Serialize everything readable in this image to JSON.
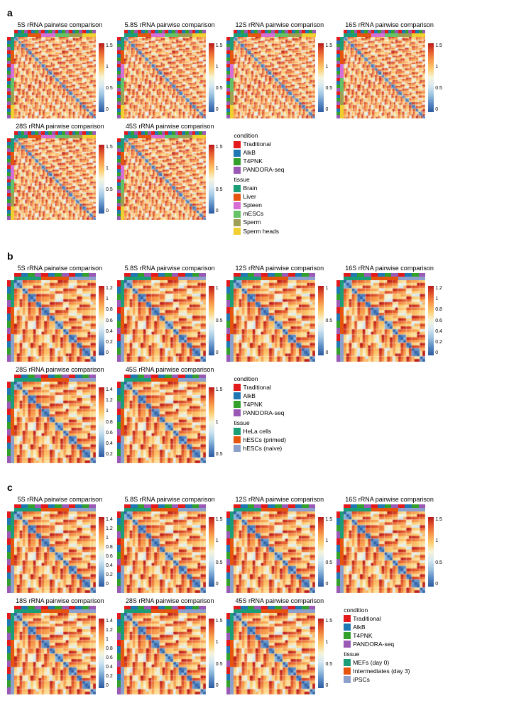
{
  "colorbar_gradient": [
    "#2c5aa0",
    "#5a8bc4",
    "#9cc3e0",
    "#d4e7f2",
    "#f5f5dc",
    "#fccf73",
    "#f79a4b",
    "#e55c2e",
    "#b8181a"
  ],
  "panels": {
    "a": {
      "label": "a",
      "heatmap_size": 115,
      "bar_thickness": 5,
      "conditions": [
        {
          "label": "Traditional",
          "color": "#e31a1c"
        },
        {
          "label": "AlkB",
          "color": "#1f78b4"
        },
        {
          "label": "T4PNK",
          "color": "#33a02c"
        },
        {
          "label": "PANDORA-seq",
          "color": "#9b59b6"
        }
      ],
      "tissues": [
        {
          "label": "Brain",
          "color": "#1b9e77"
        },
        {
          "label": "Liver",
          "color": "#e6550d"
        },
        {
          "label": "Spleen",
          "color": "#d66ed6"
        },
        {
          "label": "mESCs",
          "color": "#66c266"
        },
        {
          "label": "Sperm",
          "color": "#9e9e55"
        },
        {
          "label": "Sperm heads",
          "color": "#f0d030"
        }
      ],
      "plots_row1": [
        {
          "title": "5S rRNA pairwise comparison",
          "ticks": [
            "1.5",
            "1",
            "0.5",
            "0"
          ]
        },
        {
          "title": "5.8S rRNA pairwise comparison",
          "ticks": [
            "1.5",
            "1",
            "0.5",
            "0"
          ]
        },
        {
          "title": "12S rRNA pairwise comparison",
          "ticks": [
            "1.5",
            "1",
            "0.5",
            "0"
          ]
        },
        {
          "title": "16S rRNA pairwise comparison",
          "ticks": [
            "1.5",
            "1",
            "0.5",
            "0"
          ]
        }
      ],
      "plots_row2": [
        {
          "title": "28S rRNA pairwise comparison",
          "ticks": [
            "1.5",
            "1",
            "0.5",
            "0"
          ]
        },
        {
          "title": "45S rRNA pairwise comparison",
          "ticks": [
            "1.5",
            "1",
            "0.5",
            "0"
          ]
        }
      ]
    },
    "b": {
      "label": "b",
      "heatmap_size": 115,
      "bar_thickness": 5,
      "conditions": [
        {
          "label": "Traditional",
          "color": "#e31a1c"
        },
        {
          "label": "AlkB",
          "color": "#1f78b4"
        },
        {
          "label": "T4PNK",
          "color": "#33a02c"
        },
        {
          "label": "PANDORA-seq",
          "color": "#9b59b6"
        }
      ],
      "tissues": [
        {
          "label": "HeLa cells",
          "color": "#1b9e77"
        },
        {
          "label": "hESCs (primed)",
          "color": "#e6550d"
        },
        {
          "label": "hESCs (naive)",
          "color": "#8da0cb"
        }
      ],
      "plots_row1": [
        {
          "title": "5S rRNA pairwise comparison",
          "ticks": [
            "1.2",
            "1",
            "0.8",
            "0.6",
            "0.4",
            "0.2",
            "0"
          ]
        },
        {
          "title": "5.8S rRNA pairwise comparison",
          "ticks": [
            "1",
            "0.5",
            "0"
          ]
        },
        {
          "title": "12S rRNA pairwise comparison",
          "ticks": [
            "1",
            "0.5",
            "0"
          ]
        },
        {
          "title": "16S rRNA pairwise comparison",
          "ticks": [
            "1.2",
            "1",
            "0.8",
            "0.6",
            "0.4",
            "0.2",
            "0"
          ]
        }
      ],
      "plots_row2": [
        {
          "title": "28S rRNA pairwise comparison",
          "ticks": [
            "1.4",
            "1.2",
            "1",
            "0.8",
            "0.6",
            "0.4",
            "0.2"
          ]
        },
        {
          "title": "45S rRNA pairwise comparison",
          "ticks": [
            "1.5",
            "1",
            "0.5"
          ]
        }
      ]
    },
    "c": {
      "label": "c",
      "heatmap_size": 115,
      "bar_thickness": 5,
      "conditions": [
        {
          "label": "Traditional",
          "color": "#e31a1c"
        },
        {
          "label": "AlkB",
          "color": "#1f78b4"
        },
        {
          "label": "T4PNK",
          "color": "#33a02c"
        },
        {
          "label": "PANDORA-seq",
          "color": "#9b59b6"
        }
      ],
      "tissues": [
        {
          "label": "MEFs (day 0)",
          "color": "#1b9e77"
        },
        {
          "label": "Intermediates (day 3)",
          "color": "#e6550d"
        },
        {
          "label": "iPSCs",
          "color": "#8da0cb"
        }
      ],
      "plots_row1": [
        {
          "title": "5S rRNA pairwise comparison",
          "ticks": [
            "1.4",
            "1.2",
            "1",
            "0.8",
            "0.6",
            "0.4",
            "0.2",
            "0"
          ]
        },
        {
          "title": "5.8S rRNA pairwise comparison",
          "ticks": [
            "1.5",
            "1",
            "0.5",
            "0"
          ]
        },
        {
          "title": "12S rRNA pairwise comparison",
          "ticks": [
            "1.5",
            "1",
            "0.5",
            "0"
          ]
        },
        {
          "title": "16S rRNA pairwise comparison",
          "ticks": [
            "1.5",
            "1",
            "0.5",
            "0"
          ]
        }
      ],
      "plots_row2": [
        {
          "title": "18S rRNA pairwise comparison",
          "ticks": [
            "1.4",
            "1.2",
            "1",
            "0.8",
            "0.6",
            "0.4",
            "0.2",
            "0"
          ]
        },
        {
          "title": "28S rRNA pairwise comparison",
          "ticks": [
            "1.5",
            "1",
            "0.5",
            "0"
          ]
        },
        {
          "title": "45S rRNA pairwise comparison",
          "ticks": [
            "1.5",
            "1",
            "0.5",
            "0"
          ]
        }
      ]
    }
  },
  "legend_heading_condition": "condition",
  "legend_heading_tissue": "tissue"
}
